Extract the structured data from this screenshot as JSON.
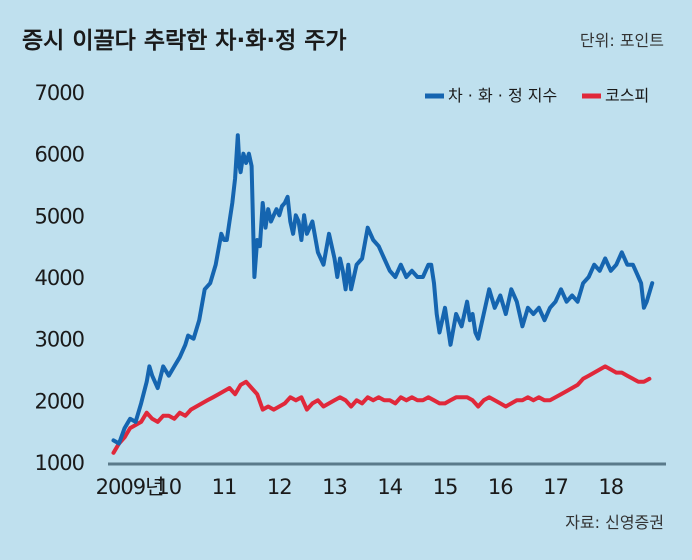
{
  "title": "증시 이끌다 추락한 차·화·정 주가",
  "unit_label": "단위: 포인트",
  "source_label": "자료: 신영증권",
  "colors": {
    "background": "#bfe0ee",
    "chahwajeong": "#1565b0",
    "kospi": "#e0283a",
    "axis": "#5a7a8a"
  },
  "chart_data": {
    "type": "line",
    "title": "증시 이끌다 추락한 차·화·정 주가",
    "ylim": [
      1000,
      7000
    ],
    "y_ticks": [
      "7000",
      "6000",
      "5000",
      "4000",
      "3000",
      "2000",
      "1000"
    ],
    "y_tick_values": [
      7000,
      6000,
      5000,
      4000,
      3000,
      2000,
      1000
    ],
    "x_ticks": [
      "2009년",
      "10",
      "11",
      "12",
      "13",
      "14",
      "15",
      "16",
      "17",
      "18"
    ],
    "x_tick_values": [
      2009,
      2010,
      2011,
      2012,
      2013,
      2014,
      2015,
      2016,
      2017,
      2018
    ],
    "xlim": [
      2008.9,
      2019.0
    ],
    "legend_position": "top-right",
    "series": [
      {
        "name": "차 · 화 · 정 지수",
        "color": "#1565b0",
        "x": [
          2009.0,
          2009.1,
          2009.2,
          2009.3,
          2009.4,
          2009.5,
          2009.6,
          2009.65,
          2009.7,
          2009.8,
          2009.9,
          2010.0,
          2010.1,
          2010.2,
          2010.3,
          2010.35,
          2010.45,
          2010.55,
          2010.65,
          2010.75,
          2010.85,
          2010.95,
          2011.0,
          2011.05,
          2011.1,
          2011.15,
          2011.2,
          2011.25,
          2011.28,
          2011.3,
          2011.35,
          2011.4,
          2011.45,
          2011.5,
          2011.55,
          2011.6,
          2011.65,
          2011.7,
          2011.75,
          2011.8,
          2011.85,
          2011.9,
          2011.95,
          2012.0,
          2012.05,
          2012.1,
          2012.15,
          2012.2,
          2012.25,
          2012.3,
          2012.35,
          2012.4,
          2012.45,
          2012.5,
          2012.6,
          2012.7,
          2012.8,
          2012.9,
          2013.0,
          2013.05,
          2013.1,
          2013.15,
          2013.2,
          2013.25,
          2013.3,
          2013.4,
          2013.5,
          2013.6,
          2013.7,
          2013.8,
          2013.9,
          2014.0,
          2014.1,
          2014.2,
          2014.3,
          2014.4,
          2014.5,
          2014.6,
          2014.7,
          2014.75,
          2014.8,
          2014.85,
          2014.9,
          2015.0,
          2015.1,
          2015.2,
          2015.3,
          2015.4,
          2015.45,
          2015.5,
          2015.55,
          2015.6,
          2015.7,
          2015.8,
          2015.9,
          2016.0,
          2016.1,
          2016.2,
          2016.3,
          2016.4,
          2016.5,
          2016.6,
          2016.7,
          2016.8,
          2016.9,
          2017.0,
          2017.1,
          2017.2,
          2017.3,
          2017.4,
          2017.5,
          2017.6,
          2017.7,
          2017.8,
          2017.9,
          2018.0,
          2018.1,
          2018.2,
          2018.3,
          2018.4,
          2018.5,
          2018.55,
          2018.6,
          2018.65,
          2018.75
        ],
        "values": [
          1350,
          1300,
          1550,
          1700,
          1650,
          1950,
          2300,
          2550,
          2400,
          2200,
          2550,
          2400,
          2550,
          2700,
          2900,
          3050,
          3000,
          3300,
          3800,
          3900,
          4200,
          4700,
          4600,
          4600,
          4900,
          5200,
          5600,
          6300,
          5800,
          5700,
          6000,
          5850,
          6000,
          5800,
          4000,
          4600,
          4500,
          5200,
          4800,
          5100,
          4900,
          5000,
          5100,
          5000,
          5150,
          5200,
          5300,
          4900,
          4700,
          5000,
          4900,
          4600,
          5000,
          4700,
          4900,
          4400,
          4200,
          4700,
          4300,
          4000,
          4300,
          4100,
          3800,
          4200,
          3800,
          4200,
          4300,
          4800,
          4600,
          4500,
          4300,
          4100,
          4000,
          4200,
          4000,
          4100,
          4000,
          4000,
          4200,
          4200,
          3900,
          3400,
          3100,
          3500,
          2900,
          3400,
          3200,
          3600,
          3300,
          3400,
          3100,
          3000,
          3400,
          3800,
          3500,
          3700,
          3400,
          3800,
          3600,
          3200,
          3500,
          3400,
          3500,
          3300,
          3500,
          3600,
          3800,
          3600,
          3700,
          3600,
          3900,
          4000,
          4200,
          4100,
          4300,
          4100,
          4200,
          4400,
          4200,
          4200,
          4000,
          3900,
          3500,
          3600,
          3900
        ]
      },
      {
        "name": "코스피",
        "color": "#e0283a",
        "x": [
          2009.0,
          2009.1,
          2009.2,
          2009.3,
          2009.4,
          2009.5,
          2009.6,
          2009.7,
          2009.8,
          2009.9,
          2010.0,
          2010.1,
          2010.2,
          2010.3,
          2010.4,
          2010.5,
          2010.6,
          2010.7,
          2010.8,
          2010.9,
          2011.0,
          2011.1,
          2011.2,
          2011.3,
          2011.4,
          2011.5,
          2011.6,
          2011.7,
          2011.8,
          2011.9,
          2012.0,
          2012.1,
          2012.2,
          2012.3,
          2012.4,
          2012.5,
          2012.6,
          2012.7,
          2012.8,
          2012.9,
          2013.0,
          2013.1,
          2013.2,
          2013.3,
          2013.4,
          2013.5,
          2013.6,
          2013.7,
          2013.8,
          2013.9,
          2014.0,
          2014.1,
          2014.2,
          2014.3,
          2014.4,
          2014.5,
          2014.6,
          2014.7,
          2014.8,
          2014.9,
          2015.0,
          2015.1,
          2015.2,
          2015.3,
          2015.4,
          2015.5,
          2015.6,
          2015.7,
          2015.8,
          2015.9,
          2016.0,
          2016.1,
          2016.2,
          2016.3,
          2016.4,
          2016.5,
          2016.6,
          2016.7,
          2016.8,
          2016.9,
          2017.0,
          2017.1,
          2017.2,
          2017.3,
          2017.4,
          2017.5,
          2017.6,
          2017.7,
          2017.8,
          2017.9,
          2018.0,
          2018.1,
          2018.2,
          2018.3,
          2018.4,
          2018.5,
          2018.6,
          2018.7
        ],
        "values": [
          1150,
          1300,
          1400,
          1550,
          1600,
          1650,
          1800,
          1700,
          1650,
          1750,
          1750,
          1700,
          1800,
          1750,
          1850,
          1900,
          1950,
          2000,
          2050,
          2100,
          2150,
          2200,
          2100,
          2250,
          2300,
          2200,
          2100,
          1850,
          1900,
          1850,
          1900,
          1950,
          2050,
          2000,
          2050,
          1850,
          1950,
          2000,
          1900,
          1950,
          2000,
          2050,
          2000,
          1900,
          2000,
          1950,
          2050,
          2000,
          2050,
          2000,
          2000,
          1950,
          2050,
          2000,
          2050,
          2000,
          2000,
          2050,
          2000,
          1950,
          1950,
          2000,
          2050,
          2050,
          2050,
          2000,
          1900,
          2000,
          2050,
          2000,
          1950,
          1900,
          1950,
          2000,
          2000,
          2050,
          2000,
          2050,
          2000,
          2000,
          2050,
          2100,
          2150,
          2200,
          2250,
          2350,
          2400,
          2450,
          2500,
          2550,
          2500,
          2450,
          2450,
          2400,
          2350,
          2300,
          2300,
          2350
        ]
      }
    ]
  }
}
